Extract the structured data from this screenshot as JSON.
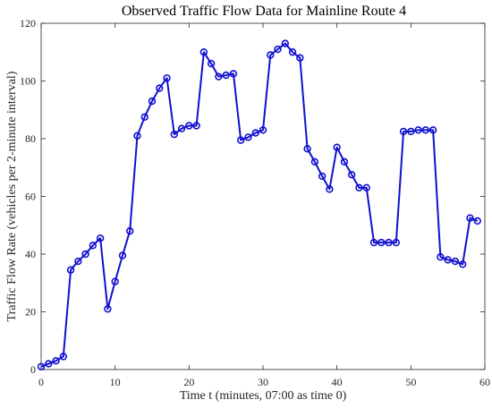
{
  "chart_data": {
    "type": "line",
    "title": "Observed Traffic Flow Data for Mainline Route 4",
    "xlabel": "Time t (minutes, 07:00 as time 0)",
    "ylabel": "Traffic Flow Rate (vehicles per 2-minute interval)",
    "xlim": [
      0,
      60
    ],
    "ylim": [
      0,
      120
    ],
    "xticks": [
      0,
      10,
      20,
      30,
      40,
      50,
      60
    ],
    "yticks": [
      0,
      20,
      40,
      60,
      80,
      100,
      120
    ],
    "grid": false,
    "line_color": "#1010d0",
    "marker": "circle",
    "x": [
      0,
      1,
      2,
      3,
      4,
      5,
      6,
      7,
      8,
      9,
      10,
      11,
      12,
      13,
      14,
      15,
      16,
      17,
      18,
      19,
      20,
      21,
      22,
      23,
      24,
      25,
      26,
      27,
      28,
      29,
      30,
      31,
      32,
      33,
      34,
      35,
      36,
      37,
      38,
      39,
      40,
      41,
      42,
      43,
      44,
      45,
      46,
      47,
      48,
      49,
      50,
      51,
      52,
      53,
      54,
      55,
      56,
      57,
      58,
      59
    ],
    "y": [
      1,
      2,
      3,
      4.5,
      34.5,
      37.5,
      40,
      43,
      45.5,
      21,
      30.5,
      39.5,
      48,
      81,
      87.5,
      93,
      97.5,
      101,
      81.5,
      83.5,
      84.5,
      84.5,
      110,
      106,
      101.5,
      102,
      102.5,
      79.5,
      80.5,
      82,
      83,
      109,
      111,
      113,
      110,
      108,
      76.5,
      72,
      67,
      62.5,
      77,
      72,
      67.5,
      63,
      63,
      44,
      44,
      44,
      44,
      82.5,
      82.5,
      83,
      83,
      83,
      39,
      38,
      37.5,
      36.5,
      52.5,
      51.5
    ]
  }
}
